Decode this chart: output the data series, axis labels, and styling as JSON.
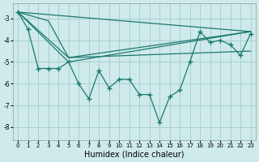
{
  "xlabel": "Humidex (Indice chaleur)",
  "bg_color": "#ceeaea",
  "grid_color": "#aad0d0",
  "line_color": "#1a7a6e",
  "xlim": [
    -0.5,
    23.5
  ],
  "ylim": [
    -8.6,
    -2.3
  ],
  "yticks": [
    -8,
    -7,
    -6,
    -5,
    -4,
    -3
  ],
  "xticks": [
    0,
    1,
    2,
    3,
    4,
    5,
    6,
    7,
    8,
    9,
    10,
    11,
    12,
    13,
    14,
    15,
    16,
    17,
    18,
    19,
    20,
    21,
    22,
    23
  ],
  "main_series": {
    "x": [
      0,
      1,
      2,
      3,
      4,
      5,
      6,
      7,
      8,
      9,
      10,
      11,
      12,
      13,
      14,
      15,
      16,
      17,
      18,
      19,
      20,
      21,
      22,
      23
    ],
    "y": [
      -2.7,
      -3.5,
      -5.3,
      -5.3,
      -5.3,
      -5.0,
      -6.0,
      -6.7,
      -5.4,
      -6.2,
      -5.8,
      -5.8,
      -6.5,
      -6.5,
      -7.8,
      -6.6,
      -6.3,
      -5.0,
      -3.6,
      -4.1,
      -4.0,
      -4.2,
      -4.7,
      -3.7
    ]
  },
  "smooth_lines": [
    {
      "x": [
        0,
        23
      ],
      "y": [
        -2.7,
        -3.6
      ]
    },
    {
      "x": [
        0,
        3,
        5,
        23
      ],
      "y": [
        -2.7,
        -3.1,
        -4.8,
        -3.6
      ]
    },
    {
      "x": [
        0,
        5,
        23
      ],
      "y": [
        -2.7,
        -5.0,
        -3.6
      ]
    },
    {
      "x": [
        0,
        5,
        23
      ],
      "y": [
        -2.7,
        -4.8,
        -4.5
      ]
    }
  ]
}
